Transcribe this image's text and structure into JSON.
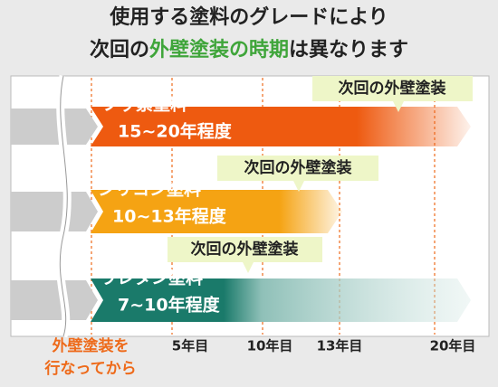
{
  "title": {
    "line1": "使用する塗料のグレードにより",
    "line2_a": "次回の",
    "line2_b": "外壁塗装の時期",
    "line2_c": "は異なります"
  },
  "rows": [
    {
      "name": "フッ素塗料",
      "period": "15~20年程度",
      "callout": "次回の外壁塗装"
    },
    {
      "name": "シリコン塗料",
      "period": "10~13年程度",
      "callout": "次回の外壁塗装"
    },
    {
      "name": "ウレタン塗料",
      "period": "7~10年程度",
      "callout": "次回の外壁塗装"
    }
  ],
  "timeline": [
    "5年目",
    "10年目",
    "13年目",
    "20年目"
  ],
  "start_note": [
    "外壁塗装を",
    "行なってから"
  ]
}
